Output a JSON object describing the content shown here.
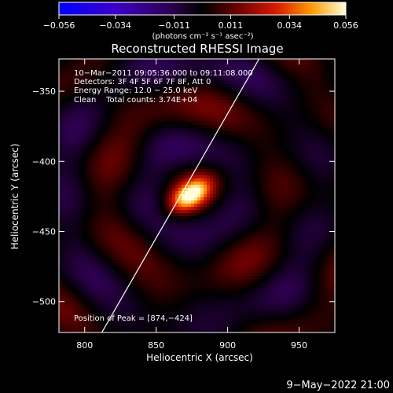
{
  "chart_data": {
    "type": "heatmap",
    "title": "Reconstructed RHESSI Image",
    "xlabel": "Heliocentric X (arcsec)",
    "ylabel": "Heliocentric Y (arcsec)",
    "xlim": [
      782,
      975
    ],
    "ylim": [
      -522,
      -327
    ],
    "x_ticks": [
      800,
      850,
      900,
      950
    ],
    "x_tick_labels": [
      "800",
      "850",
      "900",
      "950"
    ],
    "y_ticks": [
      -350,
      -400,
      -450,
      -500
    ],
    "y_tick_labels": [
      "−350",
      "−400",
      "−450",
      "−500"
    ],
    "colorbar": {
      "min": -0.056,
      "max": 0.056,
      "ticks": [
        -0.056,
        -0.034,
        -0.011,
        0.011,
        0.034,
        0.056
      ],
      "tick_labels": [
        "−0.056",
        "−0.034",
        "−0.011",
        "0.011",
        "0.034",
        "0.056"
      ],
      "unit": "(photons cm⁻² s⁻¹ asec⁻²)"
    },
    "annotations": {
      "time_range": "10−Mar−2011 09:05:36.000 to 09:11:08.000",
      "detectors": "Detectors: 3F 4F 5F 6F 7F 8F, Att 0",
      "energy": "Energy Range: 12.0 − 25.0 keV",
      "clean": "Clean    Total counts: 3.74E+04",
      "peak": "Position of Peak = [874,−424]"
    },
    "peak": {
      "x": 874,
      "y": -424,
      "value": 0.056
    },
    "limb_line": {
      "x": [
        812,
        922
      ],
      "y": [
        -522,
        -327
      ]
    },
    "footer_date": "9−May−2022 21:00"
  }
}
